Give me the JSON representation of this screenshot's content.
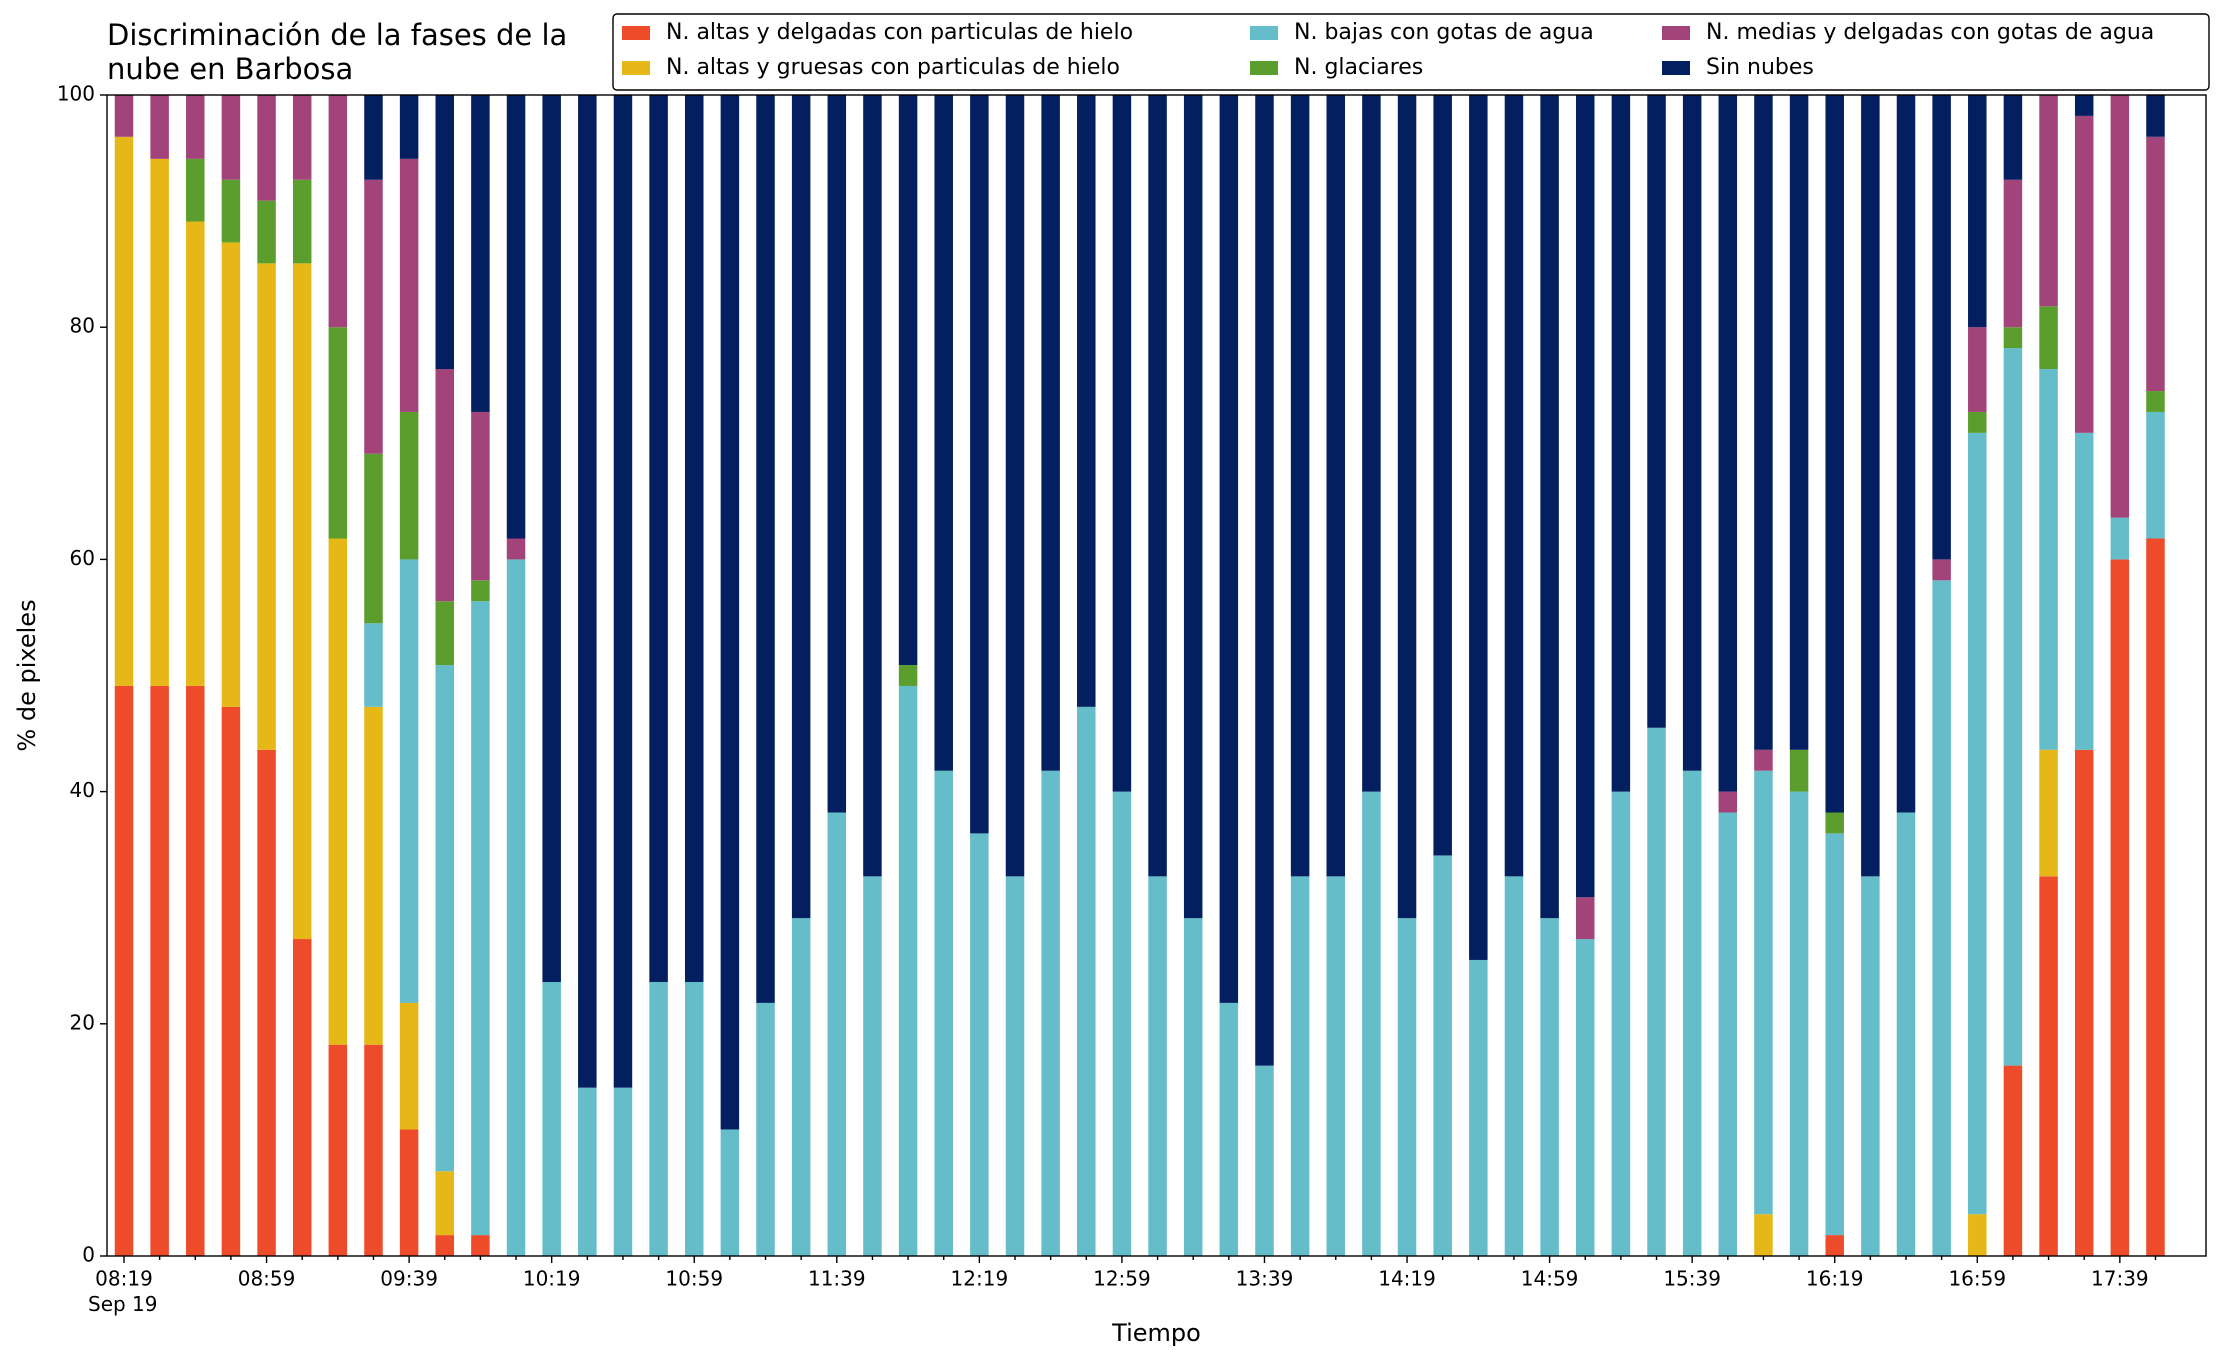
{
  "chart_data": {
    "type": "stacked_bar",
    "title": "Discriminación de la fases de la\nnube en Barbosa",
    "xlabel": "Tiempo",
    "ylabel": "% de pixeles",
    "x_sublabel": "Sep 19",
    "categories": [
      "08:19",
      null,
      null,
      null,
      "08:59",
      null,
      null,
      null,
      "09:39",
      null,
      null,
      null,
      "10:19",
      null,
      null,
      null,
      "10:59",
      null,
      null,
      null,
      "11:39",
      null,
      null,
      null,
      "12:19",
      null,
      null,
      null,
      "12:59",
      null,
      null,
      null,
      "13:39",
      null,
      null,
      null,
      "14:19",
      null,
      null,
      null,
      "14:59",
      null,
      null,
      null,
      "15:39",
      null,
      null,
      null,
      "16:19",
      null,
      null,
      null,
      "16:59",
      null,
      null,
      null,
      "17:39",
      null
    ],
    "ylim": [
      0,
      100
    ],
    "yticks": [
      0,
      20,
      40,
      60,
      80,
      100
    ],
    "legend": "top-right",
    "series": [
      {
        "name": "N. altas y delgadas con particulas de hielo",
        "color": "#ee4b2b",
        "values": [
          49.1,
          49.1,
          49.1,
          47.3,
          43.6,
          27.3,
          18.2,
          18.2,
          10.9,
          1.8,
          1.8,
          0,
          0,
          0,
          0,
          0,
          0,
          0,
          0,
          0,
          0,
          0,
          0,
          0,
          0,
          0,
          0,
          0,
          0,
          0,
          0,
          0,
          0,
          0,
          0,
          0,
          0,
          0,
          0,
          0,
          0,
          0,
          0,
          0,
          0,
          0,
          0,
          0,
          1.8,
          0,
          0,
          0,
          0,
          16.4,
          32.7,
          43.6,
          60,
          61.8
        ]
      },
      {
        "name": "N. altas y gruesas con particulas de hielo",
        "color": "#e6b817",
        "values": [
          47.3,
          45.4,
          40,
          40,
          41.9,
          58.2,
          43.6,
          29.1,
          10.9,
          5.5,
          0,
          0,
          0,
          0,
          0,
          0,
          0,
          0,
          0,
          0,
          0,
          0,
          0,
          0,
          0,
          0,
          0,
          0,
          0,
          0,
          0,
          0,
          0,
          0,
          0,
          0,
          0,
          0,
          0,
          0,
          0,
          0,
          0,
          0,
          0,
          0,
          3.6,
          0,
          0,
          0,
          0,
          0,
          3.6,
          0,
          10.9,
          0,
          0,
          0
        ]
      },
      {
        "name": "N. bajas con gotas de agua",
        "color": "#64bdc9",
        "values": [
          0,
          0,
          0,
          0,
          0,
          0,
          0,
          7.2,
          38.2,
          43.6,
          54.6,
          60,
          23.6,
          14.5,
          14.5,
          23.6,
          23.6,
          10.9,
          21.8,
          29.1,
          38.2,
          32.7,
          49.1,
          41.8,
          36.4,
          32.7,
          41.8,
          47.3,
          40,
          32.7,
          29.1,
          21.8,
          16.4,
          32.7,
          32.7,
          40,
          29.1,
          34.5,
          25.5,
          32.7,
          29.1,
          27.3,
          40,
          45.5,
          41.8,
          38.2,
          38.2,
          40,
          34.6,
          32.7,
          38.2,
          58.2,
          67.3,
          61.8,
          32.8,
          27.3,
          3.6,
          10.9
        ]
      },
      {
        "name": "N. glaciares",
        "color": "#5b9e2e",
        "values": [
          0,
          0,
          5.4,
          5.4,
          5.4,
          7.2,
          18.2,
          14.6,
          12.7,
          5.5,
          1.8,
          0,
          0,
          0,
          0,
          0,
          0,
          0,
          0,
          0,
          0,
          0,
          1.8,
          0,
          0,
          0,
          0,
          0,
          0,
          0,
          0,
          0,
          0,
          0,
          0,
          0,
          0,
          0,
          0,
          0,
          0,
          0,
          0,
          0,
          0,
          0,
          0,
          3.6,
          1.8,
          0,
          0,
          0,
          1.8,
          1.8,
          5.4,
          0,
          0,
          1.8
        ]
      },
      {
        "name": "N. medias y delgadas con gotas de agua",
        "color": "#a2447a",
        "values": [
          3.6,
          5.5,
          5.5,
          7.3,
          9.1,
          7.3,
          20,
          23.6,
          21.8,
          20,
          14.5,
          1.8,
          0,
          0,
          0,
          0,
          0,
          0,
          0,
          0,
          0,
          0,
          0,
          0,
          0,
          0,
          0,
          0,
          0,
          0,
          0,
          0,
          0,
          0,
          0,
          0,
          0,
          0,
          0,
          0,
          0,
          3.6,
          0,
          0,
          0,
          1.8,
          1.8,
          0,
          0,
          0,
          0,
          1.8,
          7.3,
          12.7,
          18.2,
          27.3,
          36.4,
          21.9
        ]
      },
      {
        "name": "Sin nubes",
        "color": "#031f5f",
        "values": [
          0,
          0,
          0,
          0,
          0,
          0,
          0,
          7.3,
          5.5,
          23.6,
          27.3,
          38.2,
          76.4,
          85.5,
          85.5,
          76.4,
          76.4,
          89.1,
          78.2,
          70.9,
          61.8,
          67.3,
          49.1,
          58.2,
          63.6,
          67.3,
          58.2,
          52.7,
          60,
          67.3,
          70.9,
          78.2,
          83.6,
          67.3,
          67.3,
          60,
          70.9,
          65.5,
          74.5,
          67.3,
          70.9,
          69.1,
          60,
          54.5,
          58.2,
          60,
          56.4,
          56.4,
          61.8,
          67.3,
          61.8,
          40,
          20,
          7.3,
          0,
          1.8,
          0,
          3.6
        ]
      }
    ]
  }
}
